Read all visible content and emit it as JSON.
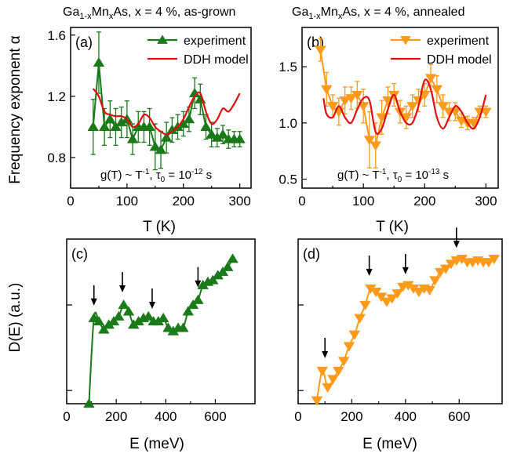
{
  "colors": {
    "green": "#1a7a1a",
    "orange": "#ff9a1a",
    "red": "#e01010",
    "axis": "#000000"
  },
  "axis_labels": {
    "top_y": "Frequency exponent α",
    "top_x_left": "T (K)",
    "top_x_right": "T (K)",
    "bottom_y": "D(E) (a.u.)",
    "bottom_x_left": "E (meV)",
    "bottom_x_right": "E (meV)"
  },
  "chart_data": [
    {
      "type": "line",
      "panel": "(a)",
      "title": "Ga1-xMnxAs, x = 4 %, as-grown",
      "annotation": "g(T) ~ T-1, τ0 = 10-12 s",
      "xlabel": "T (K)",
      "ylabel": "Frequency exponent α",
      "xlim": [
        0,
        320
      ],
      "ylim": [
        0.6,
        1.65
      ],
      "xticks": [
        0,
        100,
        200,
        300
      ],
      "yticks": [
        0.8,
        1.2,
        1.6
      ],
      "legend_position": "top-right",
      "series": [
        {
          "name": "experiment",
          "marker": "triangle-up",
          "color": "#1a7a1a",
          "x": [
            40,
            50,
            60,
            70,
            80,
            90,
            100,
            110,
            120,
            130,
            140,
            150,
            160,
            170,
            180,
            190,
            200,
            210,
            220,
            230,
            240,
            250,
            260,
            270,
            280,
            290,
            300
          ],
          "y": [
            1.0,
            1.42,
            1.0,
            1.05,
            1.0,
            1.03,
            1.05,
            0.92,
            1.0,
            1.0,
            1.0,
            0.87,
            0.85,
            0.93,
            0.98,
            1.0,
            1.02,
            1.05,
            1.22,
            1.18,
            1.0,
            0.95,
            0.93,
            0.95,
            0.92,
            0.92,
            0.92
          ],
          "yerr": [
            0.18,
            0.2,
            0.12,
            0.12,
            0.12,
            0.1,
            0.12,
            0.1,
            0.1,
            0.1,
            0.12,
            0.15,
            0.12,
            0.1,
            0.08,
            0.08,
            0.08,
            0.08,
            0.1,
            0.1,
            0.08,
            0.08,
            0.06,
            0.06,
            0.06,
            0.05,
            0.05
          ]
        },
        {
          "name": "DDH model",
          "color": "#e01010",
          "x": [
            40,
            50,
            60,
            70,
            80,
            90,
            100,
            110,
            120,
            130,
            140,
            150,
            160,
            170,
            180,
            190,
            200,
            210,
            220,
            230,
            240,
            250,
            260,
            270,
            280,
            290,
            300
          ],
          "y": [
            1.25,
            1.2,
            1.1,
            1.08,
            1.07,
            1.07,
            1.05,
            1.0,
            1.02,
            1.08,
            1.06,
            1.0,
            0.97,
            0.95,
            0.97,
            1.0,
            1.05,
            1.13,
            1.2,
            1.22,
            1.1,
            1.02,
            1.05,
            1.12,
            1.1,
            1.15,
            1.22
          ]
        }
      ]
    },
    {
      "type": "line",
      "panel": "(b)",
      "title": "Ga1-xMnxAs, x = 4 %, annealed",
      "annotation": "g(T) ~ T-1, τ0 = 10-13 s",
      "xlabel": "T (K)",
      "ylabel": "",
      "xlim": [
        0,
        320
      ],
      "ylim": [
        0.42,
        1.85
      ],
      "xticks": [
        0,
        100,
        200,
        300
      ],
      "yticks": [
        0.5,
        1.0,
        1.5
      ],
      "legend_position": "top-right",
      "series": [
        {
          "name": "experiment",
          "marker": "triangle-down",
          "color": "#ff9a1a",
          "x": [
            30,
            40,
            50,
            60,
            70,
            80,
            90,
            100,
            110,
            120,
            130,
            140,
            150,
            160,
            170,
            180,
            190,
            200,
            210,
            220,
            230,
            240,
            250,
            260,
            270,
            280,
            290,
            300
          ],
          "y": [
            1.65,
            1.3,
            1.15,
            1.1,
            1.2,
            1.22,
            1.25,
            1.15,
            0.85,
            0.8,
            1.05,
            1.2,
            1.25,
            1.1,
            1.05,
            1.15,
            1.2,
            1.25,
            1.4,
            1.3,
            1.15,
            1.1,
            1.1,
            1.02,
            1.0,
            1.0,
            1.1,
            1.1
          ],
          "yerr": [
            0.1,
            0.15,
            0.1,
            0.12,
            0.12,
            0.1,
            0.12,
            0.15,
            0.25,
            0.2,
            0.15,
            0.12,
            0.1,
            0.1,
            0.1,
            0.1,
            0.1,
            0.1,
            0.12,
            0.12,
            0.1,
            0.08,
            0.08,
            0.06,
            0.06,
            0.05,
            0.05,
            0.05
          ]
        },
        {
          "name": "DDH model",
          "color": "#e01010",
          "x": [
            35,
            40,
            50,
            60,
            70,
            80,
            90,
            100,
            110,
            120,
            130,
            140,
            150,
            160,
            170,
            180,
            190,
            200,
            210,
            220,
            230,
            240,
            250,
            260,
            270,
            280,
            290,
            300
          ],
          "y": [
            1.22,
            1.08,
            1.05,
            1.15,
            1.05,
            1.0,
            1.12,
            1.22,
            1.2,
            0.92,
            0.95,
            1.12,
            1.25,
            1.1,
            1.0,
            1.0,
            1.15,
            1.38,
            1.3,
            1.05,
            0.95,
            1.05,
            1.15,
            1.1,
            1.0,
            0.95,
            1.05,
            1.25
          ]
        }
      ]
    },
    {
      "type": "line",
      "panel": "(c)",
      "title": "",
      "xlabel": "E (meV)",
      "ylabel": "D(E) (a.u.)",
      "xlim": [
        0,
        760
      ],
      "ylim": [
        0,
        1
      ],
      "xticks": [
        0,
        200,
        400,
        600
      ],
      "y_scale": "log",
      "y_tick_labels": false,
      "arrows_at": [
        110,
        225,
        345,
        530
      ],
      "series": [
        {
          "name": "",
          "marker": "triangle-up",
          "color": "#1a7a1a",
          "x": [
            90,
            110,
            130,
            150,
            170,
            190,
            210,
            230,
            250,
            270,
            290,
            310,
            330,
            350,
            370,
            390,
            410,
            430,
            450,
            470,
            490,
            510,
            530,
            550,
            570,
            590,
            610,
            630,
            650,
            670
          ],
          "y": [
            0.0,
            0.52,
            0.5,
            0.45,
            0.48,
            0.5,
            0.53,
            0.6,
            0.56,
            0.48,
            0.5,
            0.52,
            0.53,
            0.5,
            0.5,
            0.52,
            0.46,
            0.44,
            0.46,
            0.46,
            0.56,
            0.6,
            0.63,
            0.72,
            0.74,
            0.75,
            0.78,
            0.8,
            0.83,
            0.88
          ]
        }
      ]
    },
    {
      "type": "line",
      "panel": "(d)",
      "title": "",
      "xlabel": "E (meV)",
      "ylabel": "",
      "xlim": [
        0,
        760
      ],
      "ylim": [
        0,
        1
      ],
      "xticks": [
        0,
        200,
        400,
        600
      ],
      "y_scale": "log",
      "y_tick_labels": false,
      "arrows_at": [
        100,
        265,
        400,
        590
      ],
      "series": [
        {
          "name": "",
          "marker": "triangle-down",
          "color": "#ff9a1a",
          "x": [
            70,
            90,
            110,
            130,
            150,
            170,
            190,
            210,
            230,
            250,
            270,
            290,
            310,
            330,
            350,
            370,
            390,
            410,
            430,
            450,
            470,
            490,
            510,
            530,
            550,
            570,
            590,
            610,
            630,
            650,
            670,
            690,
            710,
            730
          ],
          "y": [
            0.02,
            0.2,
            0.1,
            0.15,
            0.2,
            0.26,
            0.35,
            0.42,
            0.52,
            0.6,
            0.7,
            0.68,
            0.65,
            0.62,
            0.64,
            0.67,
            0.71,
            0.72,
            0.7,
            0.68,
            0.7,
            0.69,
            0.75,
            0.8,
            0.82,
            0.85,
            0.87,
            0.88,
            0.86,
            0.86,
            0.87,
            0.86,
            0.86,
            0.88
          ]
        }
      ]
    }
  ]
}
